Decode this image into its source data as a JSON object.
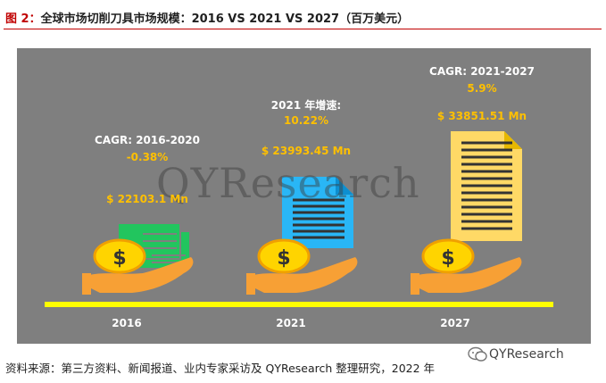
{
  "header": {
    "figure_label": "图 2：",
    "title": "全球市场切削刀具市场规模：2016 VS 2021 VS 2027（百万美元）"
  },
  "chart_data": {
    "type": "pictogram",
    "categories": [
      "2016",
      "2021",
      "2027"
    ],
    "values": [
      22103.1,
      23993.45,
      33851.51
    ],
    "unit": "Mn",
    "value_labels": [
      "$ 22103.1 Mn",
      "$ 23993.45 Mn",
      "$ 33851.51 Mn"
    ],
    "annotations": [
      {
        "label": "CAGR: 2016-2020",
        "value": "-0.38%"
      },
      {
        "label": "2021 年增速:",
        "value": "10.22%"
      },
      {
        "label": "CAGR: 2021-2027",
        "value": "5.9%"
      }
    ],
    "colors": {
      "panel": "#7f7f7f",
      "baseline": "#ffff00",
      "bill_2016": "#22c55e",
      "doc_2021": "#29b6f6",
      "doc_2027": "#ffd966",
      "coin": "#ffd400",
      "hand": "#f7a035",
      "label_gold": "#ffc000"
    },
    "icons": [
      "money-bill-icon",
      "document-stack-icon",
      "coin-icon",
      "hand-icon"
    ]
  },
  "watermark": "QYResearch",
  "footer": {
    "source": "资料来源：第三方资料、新闻报道、业内专家采访及 QYResearch 整理研究，2022 年",
    "brand": "QYResearch"
  }
}
